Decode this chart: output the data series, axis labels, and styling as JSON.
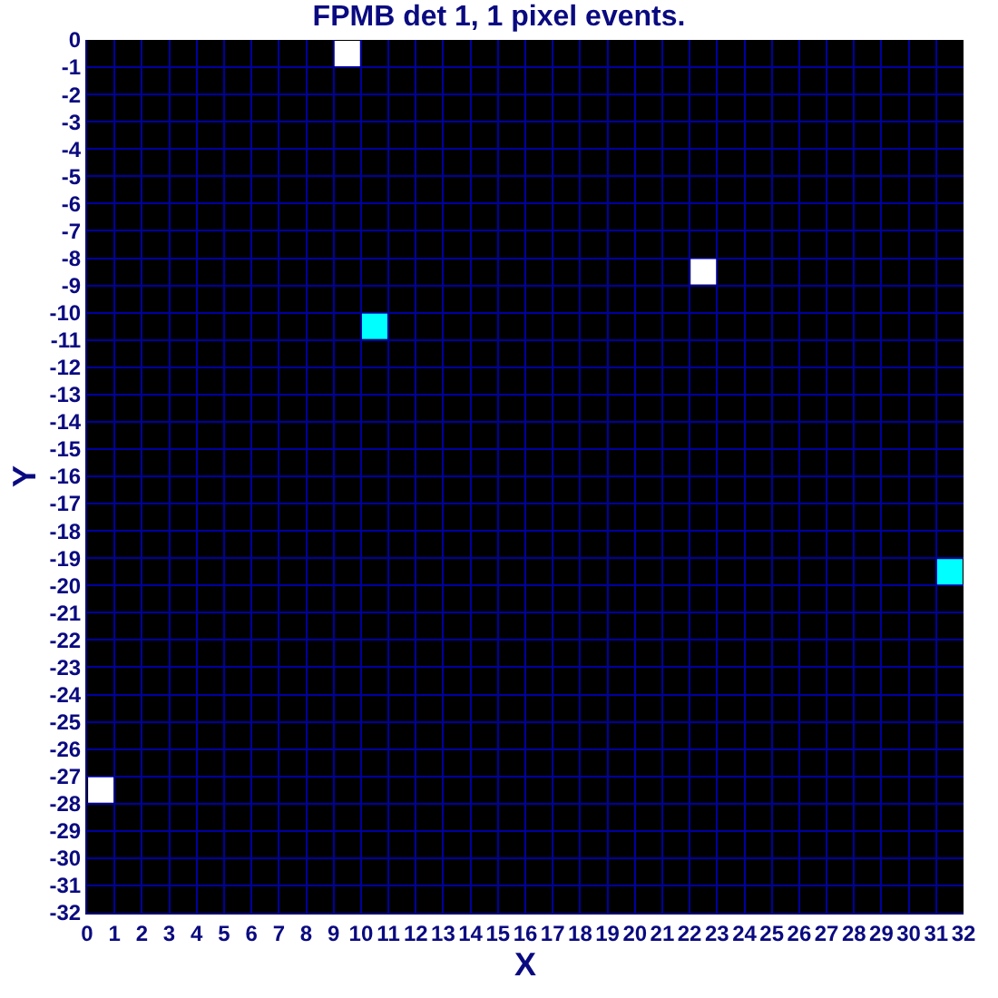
{
  "chart_data": {
    "type": "scatter",
    "title": "FPMB det 1, 1 pixel events.",
    "xlabel": "X",
    "ylabel": "Y",
    "x": [
      9.5,
      10.5,
      22.5,
      31.5,
      0.5
    ],
    "values": [
      -0.5,
      -10.5,
      -8.5,
      -19.5,
      -27.5
    ],
    "colors": [
      "#ffffff",
      "#00ffff",
      "#ffffff",
      "#00ffff",
      "#ffffff"
    ],
    "marker": "square",
    "xlim": [
      0,
      32
    ],
    "xticks": [
      0,
      1,
      2,
      3,
      4,
      5,
      6,
      7,
      8,
      9,
      10,
      11,
      12,
      13,
      14,
      15,
      16,
      17,
      18,
      19,
      20,
      21,
      22,
      23,
      24,
      25,
      26,
      27,
      28,
      29,
      30,
      31,
      32
    ],
    "ylim": [
      -32,
      0
    ],
    "yticks": [
      0,
      -1,
      -2,
      -3,
      -4,
      -5,
      -6,
      -7,
      -8,
      -9,
      -10,
      -11,
      -12,
      -13,
      -14,
      -15,
      -16,
      -17,
      -18,
      -19,
      -20,
      -21,
      -22,
      -23,
      -24,
      -25,
      -26,
      -27,
      -28,
      -29,
      -30,
      -31,
      -32
    ],
    "grid": true
  }
}
